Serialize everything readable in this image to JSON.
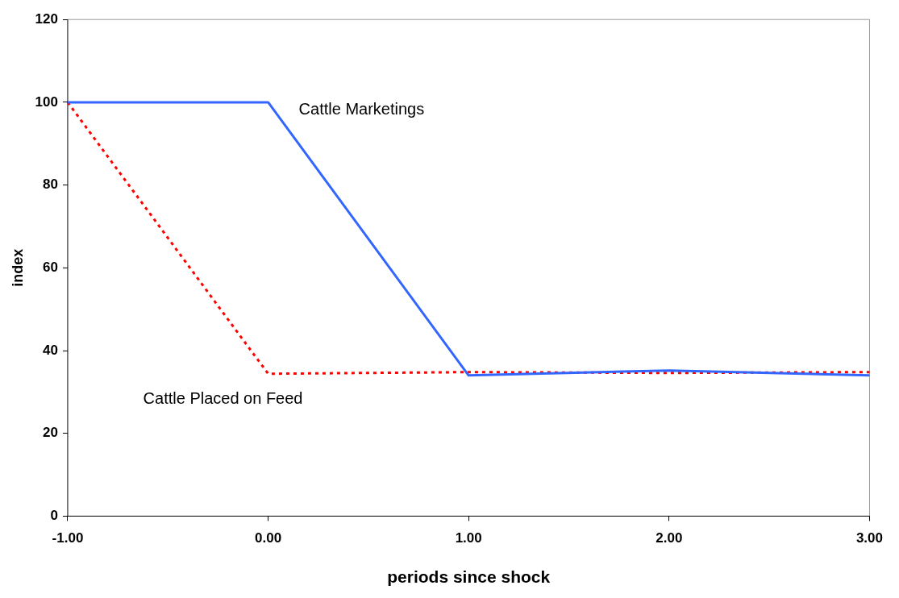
{
  "chart_data": {
    "type": "line",
    "xlabel": "periods since shock",
    "ylabel": "index",
    "x": [
      -1,
      0,
      1,
      2,
      3
    ],
    "series": [
      {
        "name": "Cattle Marketings",
        "color": "#3366ff",
        "values": [
          100,
          100,
          34,
          35.2,
          34
        ],
        "line_style": "solid"
      },
      {
        "name": "Cattle Placed on Feed",
        "color": "#ff0000",
        "values": [
          100,
          34.4,
          34.8,
          34.6,
          34.8
        ],
        "line_style": "dotted"
      }
    ],
    "xlim": [
      -1,
      3
    ],
    "xticks": [
      {
        "value": -1,
        "label": "-1.00"
      },
      {
        "value": 0,
        "label": "0.00"
      },
      {
        "value": 1,
        "label": "1.00"
      },
      {
        "value": 2,
        "label": "2.00"
      },
      {
        "value": 3,
        "label": "3.00"
      }
    ],
    "ylim": [
      0,
      120
    ],
    "yticks": [
      0,
      20,
      40,
      60,
      80,
      100,
      120
    ],
    "grid": false,
    "legend": false,
    "marker": "none"
  }
}
